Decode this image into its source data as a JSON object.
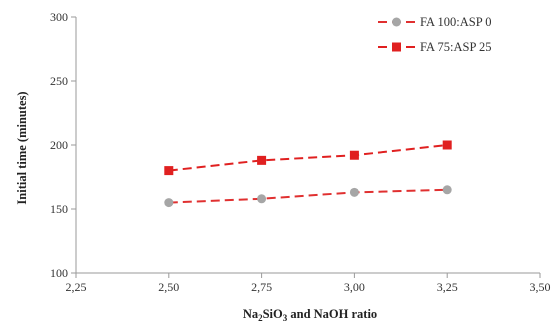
{
  "chart_data": {
    "type": "line",
    "x": [
      2.5,
      2.75,
      3.0,
      3.25
    ],
    "series": [
      {
        "name": "FA 100:ASP 0",
        "values": [
          155,
          158,
          163,
          165
        ],
        "color": "#a6a6a6",
        "line_color": "#e03030",
        "marker": "circle"
      },
      {
        "name": "FA 75:ASP 25",
        "values": [
          180,
          188,
          192,
          200
        ],
        "color": "#e02020",
        "line_color": "#e02020",
        "marker": "square"
      }
    ],
    "xlabel": {
      "pre": "Na",
      "sub1": "2",
      "mid": "SiO",
      "sub2": "3",
      "post": " and NaOH ratio"
    },
    "ylabel": "Initial time (minutes)",
    "xlim": [
      2.25,
      3.5
    ],
    "ylim": [
      100,
      300
    ],
    "x_ticks": [
      "2,25",
      "2,50",
      "2,75",
      "3,00",
      "3,25",
      "3,50"
    ],
    "y_ticks": [
      "100",
      "150",
      "200",
      "250",
      "300"
    ],
    "line_style": "dashed",
    "grid": false,
    "legend_position": "top-right"
  }
}
